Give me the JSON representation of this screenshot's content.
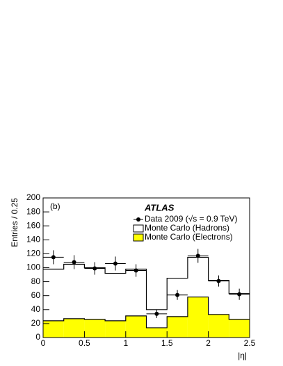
{
  "chart_data": {
    "type": "histogram",
    "annotation": "(b)",
    "experiment": "ATLAS",
    "xlabel": "|η|",
    "ylabel": "Entries / 0.25",
    "bins": [
      0,
      0.25,
      0.5,
      0.75,
      1,
      1.25,
      1.5,
      1.75,
      2,
      2.25,
      2.5
    ],
    "series": [
      {
        "name": "Monte Carlo (Hadrons)",
        "color": "#ffffff",
        "values": [
          98,
          105,
          100,
          92,
          98,
          40,
          85,
          115,
          82,
          63
        ]
      },
      {
        "name": "Monte Carlo (Electrons)",
        "color": "#ffff00",
        "values": [
          24,
          27,
          26,
          24,
          31,
          14,
          30,
          58,
          33,
          26
        ]
      }
    ],
    "data": {
      "name": "Data 2009 (√s = 0.9 TeV)",
      "color": "#000000",
      "x": [
        0.125,
        0.375,
        0.625,
        0.875,
        1.125,
        1.375,
        1.625,
        1.875,
        2.125,
        2.375
      ],
      "values": [
        115,
        108,
        99,
        106,
        96,
        34,
        61,
        117,
        81,
        62
      ],
      "errors": [
        10,
        10,
        9,
        10,
        9,
        6,
        7,
        10,
        8,
        8
      ]
    },
    "xlim": [
      0,
      2.5
    ],
    "xticks": [
      0,
      0.5,
      1,
      1.5,
      2,
      2.5
    ],
    "ylim": [
      0,
      200
    ],
    "yticks": [
      0,
      20,
      40,
      60,
      80,
      100,
      120,
      140,
      160,
      180,
      200
    ]
  }
}
